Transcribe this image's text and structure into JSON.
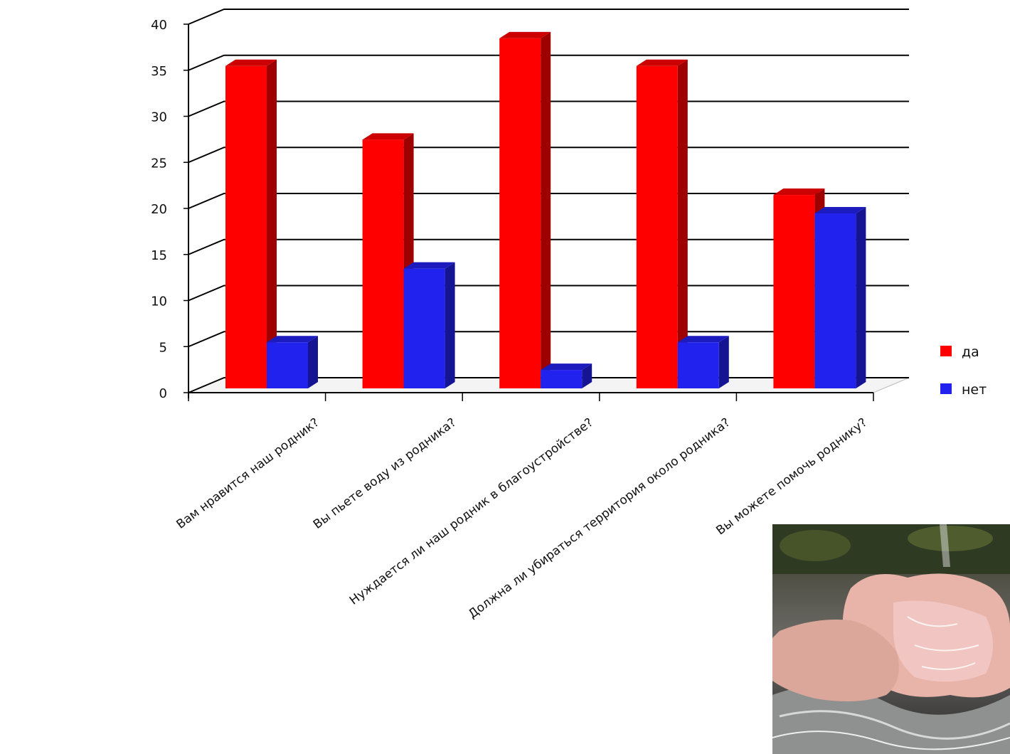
{
  "chart_data": {
    "type": "bar",
    "categories": [
      "Вам нравится наш родник?",
      "Вы пьете воду из родника?",
      "Нуждается ли наш родник в благоустройстве?",
      "Должна ли убираться территория около родника?",
      "Вы можете помочь роднику?"
    ],
    "series": [
      {
        "name": "да",
        "values": [
          35,
          27,
          38,
          35,
          21
        ],
        "color": "#ff0000"
      },
      {
        "name": "нет",
        "values": [
          5,
          13,
          2,
          5,
          19
        ],
        "color": "#2222ee"
      }
    ],
    "ylim": [
      0,
      40
    ],
    "yticks": [
      0,
      5,
      10,
      15,
      20,
      25,
      30,
      35,
      40
    ],
    "grid": true,
    "legend_position": "right",
    "style": "3d-clustered-column"
  },
  "photo": {
    "subject": "hands-in-spring-water"
  }
}
